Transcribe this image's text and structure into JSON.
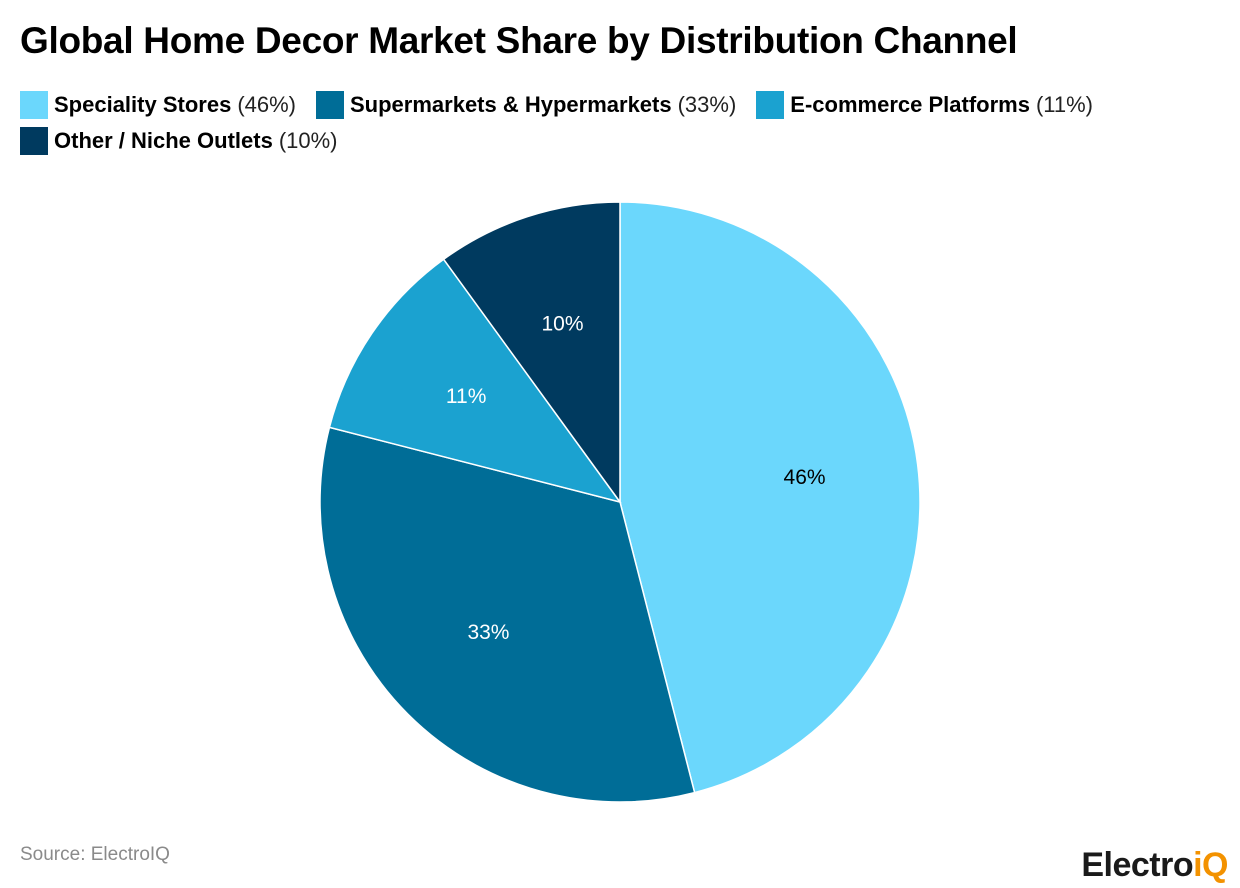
{
  "header": {
    "title": "Global Home Decor Market Share by Distribution Channel"
  },
  "legend": {
    "items": [
      {
        "label": "Speciality Stores",
        "value": "(46%)",
        "color": "#6bd7fc"
      },
      {
        "label": "Supermarkets & Hypermarkets",
        "value": "(33%)",
        "color": "#006d97"
      },
      {
        "label": "E-commerce Platforms",
        "value": "(11%)",
        "color": "#1ba2d0"
      },
      {
        "label": "Other / Niche Outlets",
        "value": "(10%)",
        "color": "#003a5f"
      }
    ]
  },
  "chart_data": {
    "type": "pie",
    "title": "Global Home Decor Market Share by Distribution Channel",
    "legend_placement": "top",
    "categories": [
      "Speciality Stores",
      "Supermarkets & Hypermarkets",
      "E-commerce Platforms",
      "Other / Niche Outlets"
    ],
    "values": [
      46,
      33,
      11,
      10
    ],
    "data_labels": [
      "46%",
      "33%",
      "11%",
      "10%"
    ],
    "colors": [
      "#6bd7fc",
      "#006d97",
      "#1ba2d0",
      "#003a5f"
    ],
    "label_colors": [
      "#000000",
      "#ffffff",
      "#ffffff",
      "#ffffff"
    ]
  },
  "footer": {
    "source": "Source: ElectroIQ",
    "logo_main": "Electro",
    "logo_accent": "iQ"
  }
}
